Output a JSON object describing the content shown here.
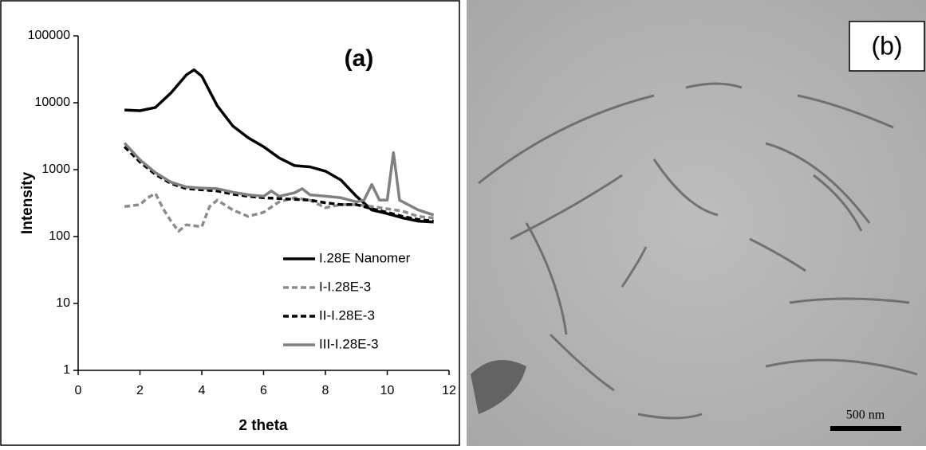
{
  "chart_data": {
    "type": "line",
    "annotation": "(a)",
    "xlabel": "2 theta",
    "ylabel": "Intensity",
    "xlim": [
      0,
      12
    ],
    "xticks": [
      0,
      2,
      4,
      6,
      8,
      10,
      12
    ],
    "ylim": [
      1,
      100000
    ],
    "yticks": [
      1,
      10,
      100,
      1000,
      10000,
      100000
    ],
    "ylog": true,
    "grid": false,
    "legend": "lower right",
    "series": [
      {
        "name": "I.28E Nanomer",
        "color": "#000000",
        "dashed": false,
        "x": [
          1.5,
          2,
          2.5,
          3,
          3.5,
          3.75,
          4,
          4.5,
          5,
          5.5,
          6,
          6.5,
          7,
          7.5,
          8,
          8.5,
          9,
          9.5,
          10,
          10.5,
          11,
          11.5
        ],
        "values": [
          7800,
          7600,
          8500,
          14000,
          26000,
          31000,
          25000,
          9000,
          4500,
          3000,
          2200,
          1500,
          1150,
          1100,
          950,
          700,
          400,
          250,
          220,
          190,
          170,
          165
        ]
      },
      {
        "name": "I-I.28E-3",
        "color": "#8c8c8c",
        "dashed": true,
        "x": [
          1.5,
          2,
          2.25,
          2.5,
          2.75,
          3,
          3.25,
          3.5,
          4,
          4.25,
          4.5,
          5,
          5.5,
          6,
          6.5,
          7,
          7.5,
          8,
          8.5,
          9,
          9.5,
          10,
          10.5,
          11,
          11.5
        ],
        "values": [
          280,
          300,
          380,
          440,
          260,
          170,
          120,
          150,
          140,
          280,
          350,
          250,
          200,
          230,
          330,
          380,
          350,
          270,
          300,
          300,
          280,
          260,
          240,
          200,
          190
        ]
      },
      {
        "name": "II-I.28E-3",
        "color": "#000000",
        "dashed": true,
        "x": [
          1.5,
          2,
          2.5,
          3,
          3.5,
          4,
          4.5,
          5,
          5.5,
          6,
          6.5,
          7,
          7.5,
          8,
          8.5,
          9,
          9.5,
          10,
          10.5,
          11,
          11.5
        ],
        "values": [
          2200,
          1300,
          850,
          620,
          520,
          500,
          480,
          430,
          400,
          380,
          370,
          360,
          350,
          320,
          300,
          300,
          260,
          230,
          200,
          180,
          170
        ]
      },
      {
        "name": "III-I.28E-3",
        "color": "#808080",
        "dashed": false,
        "x": [
          1.5,
          2,
          2.5,
          3,
          3.5,
          4,
          4.5,
          5,
          5.5,
          6,
          6.25,
          6.5,
          7,
          7.25,
          7.5,
          8,
          8.5,
          9,
          9.25,
          9.5,
          9.75,
          10,
          10.2,
          10.4,
          11,
          11.5
        ],
        "values": [
          2500,
          1400,
          900,
          650,
          550,
          530,
          520,
          460,
          420,
          400,
          480,
          400,
          450,
          520,
          420,
          400,
          380,
          330,
          350,
          600,
          350,
          350,
          1800,
          350,
          250,
          210
        ]
      }
    ]
  },
  "image_panel": {
    "label": "(b)",
    "scale_bar": "500 nm"
  }
}
